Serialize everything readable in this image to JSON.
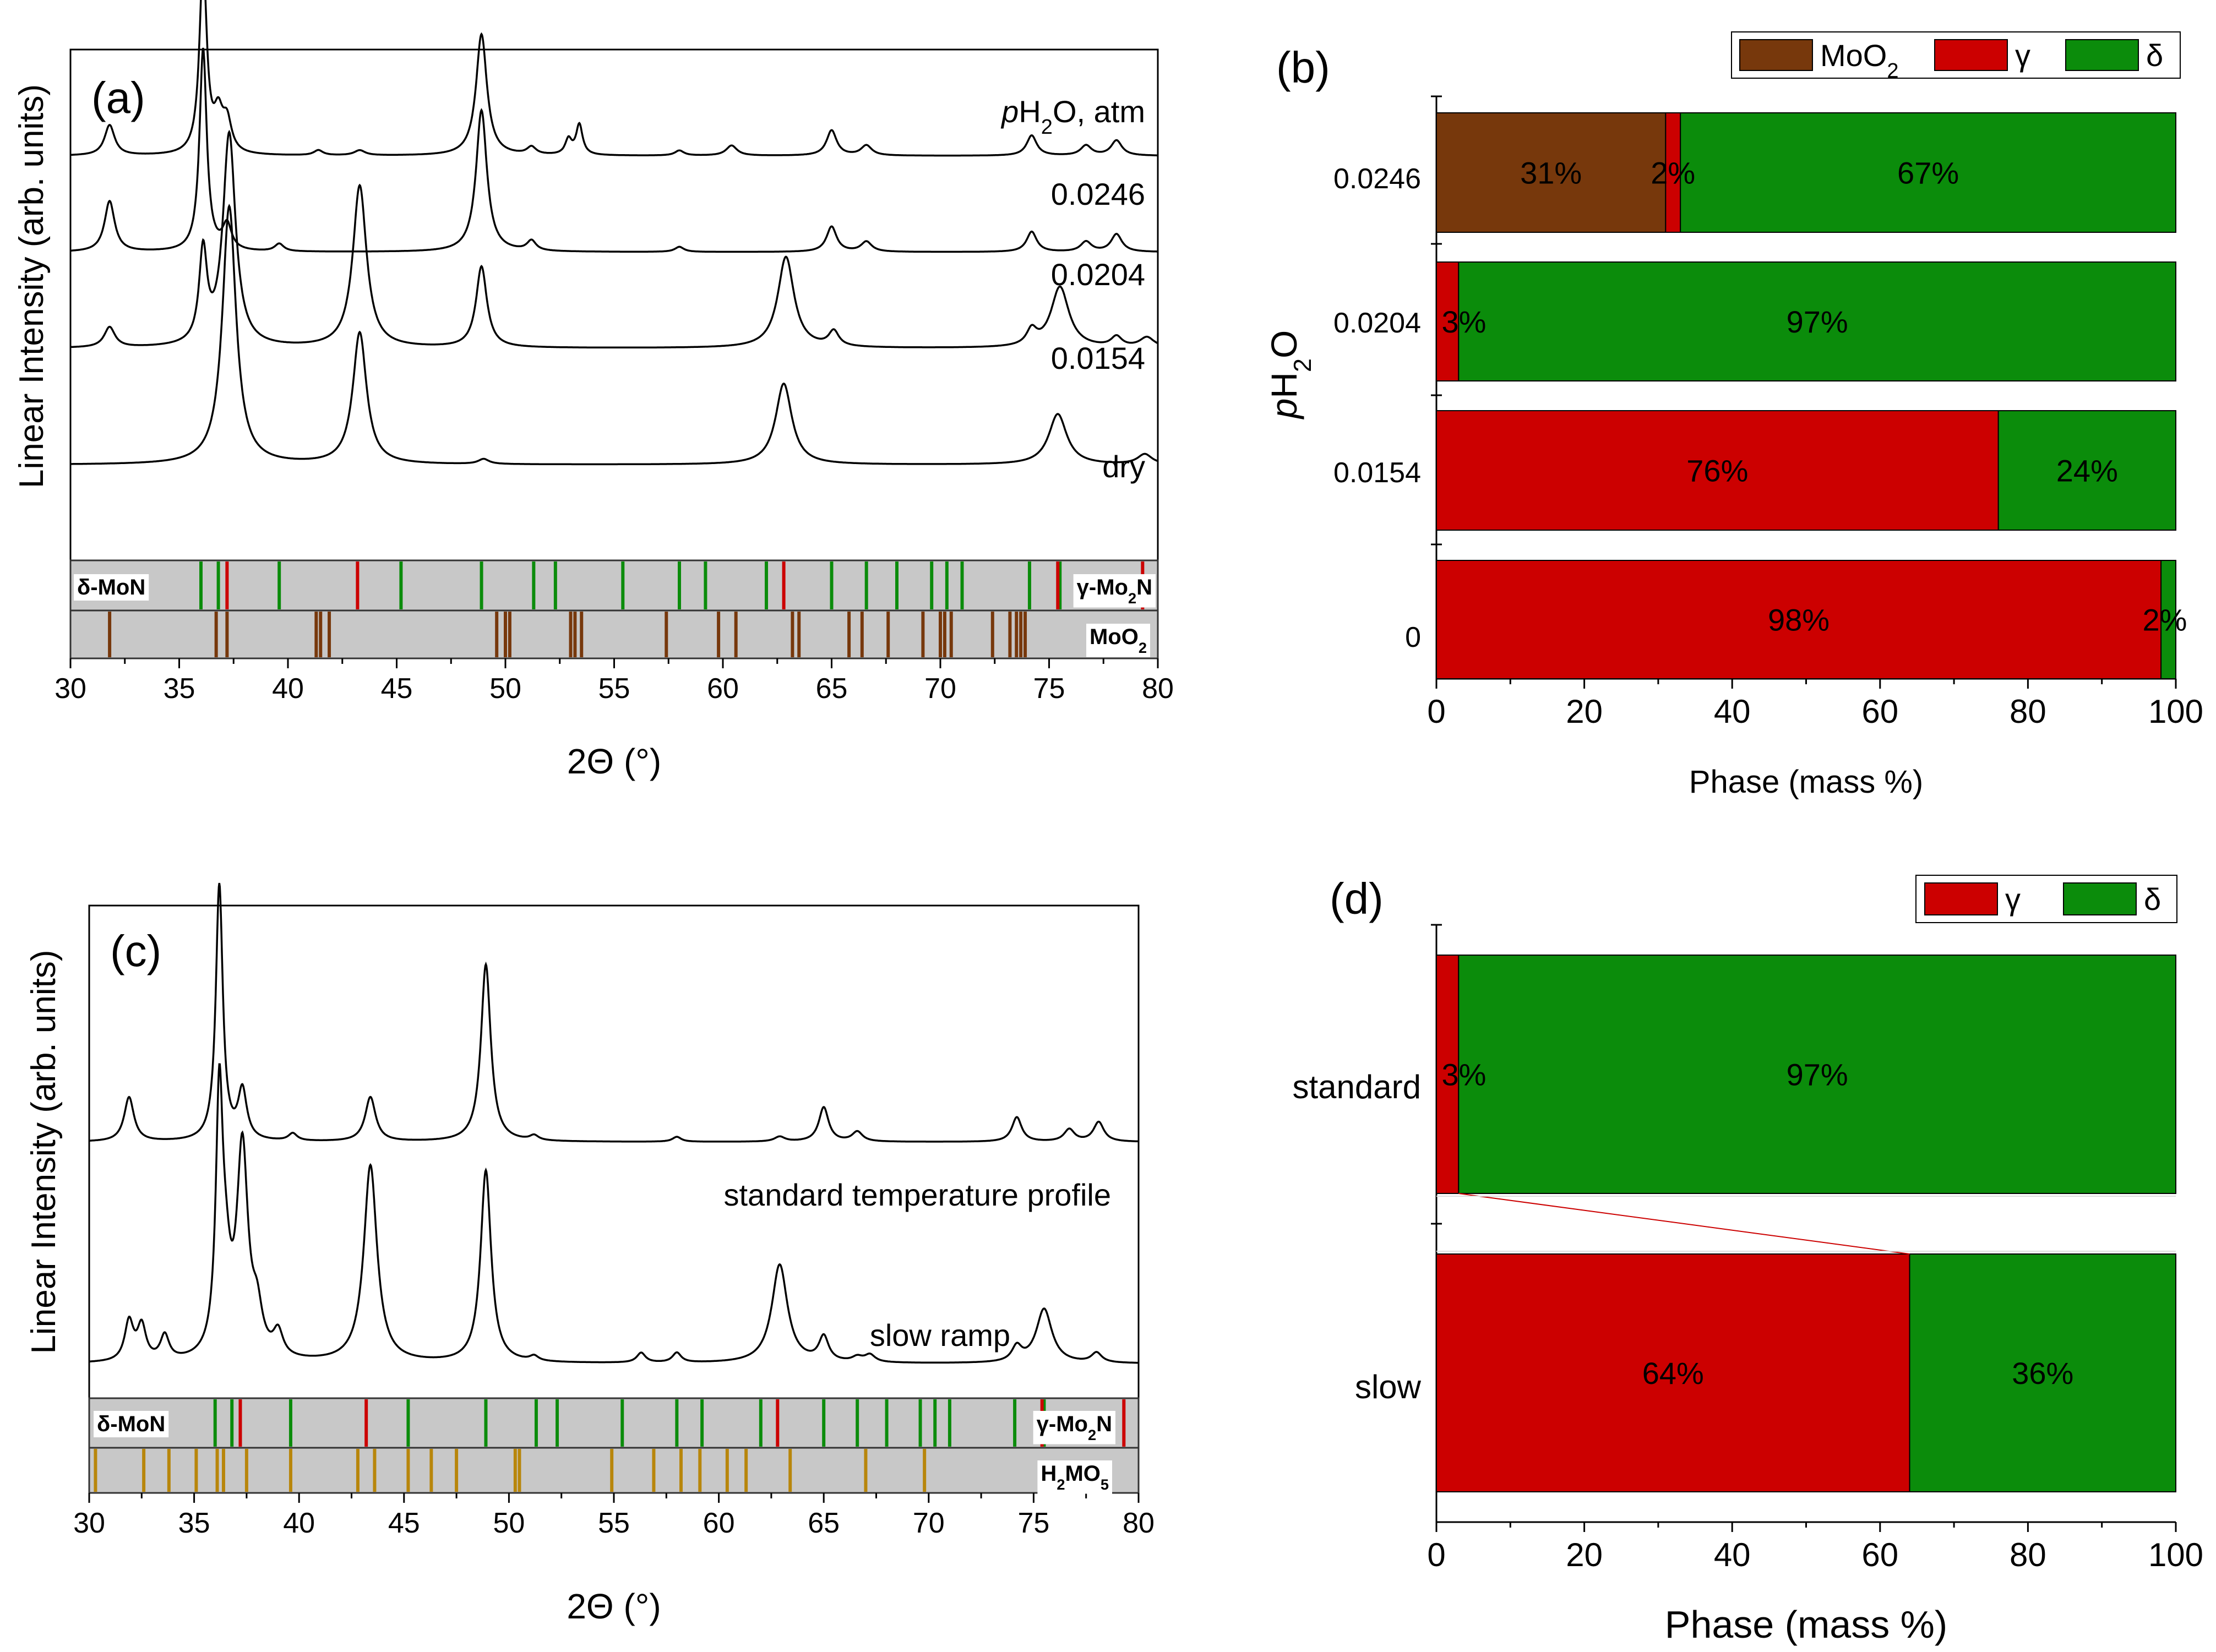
{
  "colors": {
    "moo2": "#77380c",
    "gamma": "#cc0000",
    "delta": "#0b8c0b",
    "h2mo5": "#b8860b",
    "refband": "#c8c8c8",
    "trace": "#000000"
  },
  "chart_data": [
    {
      "panel": "(a)",
      "type": "line",
      "xlabel": "2Θ (°)",
      "ylabel": "Linear Intensity (arb. units)",
      "xlim": [
        30,
        80
      ],
      "xticks": [
        30,
        35,
        40,
        45,
        50,
        55,
        60,
        65,
        70,
        75,
        80
      ],
      "legend_title": "pH2O, atm",
      "series": [
        {
          "name": "0.0246",
          "baseline": 0.79,
          "peaks": [
            [
              31.8,
              0.06,
              0.28
            ],
            [
              36.1,
              0.38,
              0.2
            ],
            [
              36.8,
              0.07,
              0.25
            ],
            [
              37.2,
              0.06,
              0.25
            ],
            [
              41.4,
              0.01,
              0.25
            ],
            [
              43.3,
              0.01,
              0.3
            ],
            [
              48.9,
              0.24,
              0.3
            ],
            [
              51.2,
              0.015,
              0.25
            ],
            [
              52.9,
              0.03,
              0.18
            ],
            [
              53.4,
              0.06,
              0.18
            ],
            [
              58.0,
              0.01,
              0.25
            ],
            [
              60.4,
              0.02,
              0.3
            ],
            [
              65.0,
              0.05,
              0.28
            ],
            [
              66.6,
              0.02,
              0.3
            ],
            [
              74.2,
              0.04,
              0.28
            ],
            [
              76.7,
              0.02,
              0.3
            ],
            [
              78.1,
              0.03,
              0.3
            ]
          ]
        },
        {
          "name": "0.0204",
          "baseline": 0.6,
          "peaks": [
            [
              31.8,
              0.1,
              0.28
            ],
            [
              36.1,
              0.4,
              0.2
            ],
            [
              37.2,
              0.05,
              0.25
            ],
            [
              39.6,
              0.015,
              0.25
            ],
            [
              48.9,
              0.28,
              0.3
            ],
            [
              51.2,
              0.02,
              0.25
            ],
            [
              58.0,
              0.01,
              0.25
            ],
            [
              65.0,
              0.05,
              0.28
            ],
            [
              66.6,
              0.02,
              0.3
            ],
            [
              74.2,
              0.04,
              0.28
            ],
            [
              76.7,
              0.02,
              0.3
            ],
            [
              78.1,
              0.035,
              0.3
            ]
          ]
        },
        {
          "name": "0.0154",
          "baseline": 0.41,
          "peaks": [
            [
              31.8,
              0.04,
              0.3
            ],
            [
              36.1,
              0.18,
              0.22
            ],
            [
              37.3,
              0.42,
              0.35
            ],
            [
              43.3,
              0.32,
              0.38
            ],
            [
              48.9,
              0.16,
              0.3
            ],
            [
              62.9,
              0.18,
              0.45
            ],
            [
              65.1,
              0.03,
              0.28
            ],
            [
              74.2,
              0.03,
              0.28
            ],
            [
              75.5,
              0.12,
              0.5
            ],
            [
              78.1,
              0.02,
              0.3
            ],
            [
              79.5,
              0.02,
              0.4
            ]
          ]
        },
        {
          "name": "dry",
          "baseline": 0.18,
          "peaks": [
            [
              37.3,
              0.51,
              0.38
            ],
            [
              43.3,
              0.26,
              0.38
            ],
            [
              49.0,
              0.01,
              0.3
            ],
            [
              62.8,
              0.16,
              0.45
            ],
            [
              75.4,
              0.1,
              0.5
            ],
            [
              79.4,
              0.02,
              0.4
            ]
          ]
        }
      ],
      "reference_bars": [
        {
          "name": "δ-MoN",
          "color_key": "delta",
          "positions": [
            36.0,
            36.8,
            39.6,
            45.2,
            48.9,
            51.3,
            52.3,
            55.4,
            58.0,
            59.2,
            62.0,
            65.0,
            66.6,
            68.0,
            69.6,
            70.3,
            71.0,
            74.1,
            75.5
          ]
        },
        {
          "name": "γ-Mo2N",
          "color_key": "gamma",
          "positions": [
            37.2,
            43.2,
            62.8,
            75.4,
            79.3
          ]
        },
        {
          "name": "MoO2",
          "color_key": "moo2",
          "positions": [
            31.8,
            36.7,
            37.2,
            41.3,
            41.5,
            41.9,
            49.6,
            50.0,
            50.2,
            53.0,
            53.2,
            53.5,
            57.4,
            59.8,
            60.6,
            63.2,
            63.5,
            65.8,
            66.4,
            67.6,
            69.2,
            70.0,
            70.2,
            70.5,
            72.4,
            73.2,
            73.5,
            73.7,
            73.9
          ]
        }
      ]
    },
    {
      "panel": "(b)",
      "type": "bar",
      "orientation": "horizontal",
      "stacked": true,
      "xlabel": "Phase (mass %)",
      "ylabel": "pH2O",
      "xlim": [
        0,
        100
      ],
      "xticks": [
        0,
        20,
        40,
        60,
        80,
        100
      ],
      "categories": [
        "0.0246",
        "0.0204",
        "0.0154",
        "0"
      ],
      "series": [
        {
          "name": "MoO2",
          "color_key": "moo2",
          "values": [
            31,
            0,
            0,
            0
          ],
          "labels": [
            "31%",
            "",
            "",
            ""
          ]
        },
        {
          "name": "γ",
          "color_key": "gamma",
          "values": [
            2,
            3,
            76,
            98
          ],
          "labels": [
            "2%",
            "3%",
            "76%",
            "98%"
          ]
        },
        {
          "name": "δ",
          "color_key": "delta",
          "values": [
            67,
            97,
            24,
            2
          ],
          "labels": [
            "67%",
            "97%",
            "24%",
            "2%"
          ]
        }
      ],
      "legend_position": "top-right"
    },
    {
      "panel": "(c)",
      "type": "line",
      "xlabel": "2Θ (°)",
      "ylabel": "Linear Intensity (arb. units)",
      "xlim": [
        30,
        80
      ],
      "xticks": [
        30,
        35,
        40,
        45,
        50,
        55,
        60,
        65,
        70,
        75,
        80
      ],
      "series": [
        {
          "name": "standard temperature profile",
          "baseline": 0.52,
          "peaks": [
            [
              31.9,
              0.09,
              0.28
            ],
            [
              36.2,
              0.52,
              0.2
            ],
            [
              37.3,
              0.1,
              0.25
            ],
            [
              39.7,
              0.015,
              0.25
            ],
            [
              43.4,
              0.09,
              0.3
            ],
            [
              48.9,
              0.36,
              0.28
            ],
            [
              51.2,
              0.01,
              0.25
            ],
            [
              58.0,
              0.01,
              0.25
            ],
            [
              62.9,
              0.01,
              0.3
            ],
            [
              65.0,
              0.07,
              0.28
            ],
            [
              66.6,
              0.02,
              0.3
            ],
            [
              74.2,
              0.05,
              0.28
            ],
            [
              76.7,
              0.025,
              0.3
            ],
            [
              78.1,
              0.04,
              0.3
            ]
          ]
        },
        {
          "name": "slow ramp",
          "baseline": 0.07,
          "peaks": [
            [
              31.9,
              0.08,
              0.25
            ],
            [
              32.5,
              0.07,
              0.25
            ],
            [
              33.6,
              0.05,
              0.25
            ],
            [
              36.2,
              0.5,
              0.2
            ],
            [
              36.5,
              0.14,
              0.3
            ],
            [
              37.3,
              0.42,
              0.32
            ],
            [
              38.0,
              0.08,
              0.3
            ],
            [
              39.0,
              0.05,
              0.28
            ],
            [
              43.4,
              0.4,
              0.38
            ],
            [
              48.9,
              0.39,
              0.3
            ],
            [
              51.2,
              0.01,
              0.25
            ],
            [
              56.3,
              0.02,
              0.25
            ],
            [
              58.0,
              0.02,
              0.25
            ],
            [
              62.9,
              0.2,
              0.45
            ],
            [
              65.0,
              0.05,
              0.28
            ],
            [
              66.6,
              0.01,
              0.3
            ],
            [
              67.2,
              0.015,
              0.3
            ],
            [
              74.2,
              0.03,
              0.28
            ],
            [
              75.5,
              0.11,
              0.45
            ],
            [
              78.0,
              0.02,
              0.3
            ]
          ]
        }
      ],
      "reference_bars": [
        {
          "name": "δ-MoN",
          "color_key": "delta",
          "positions": [
            36.0,
            36.8,
            39.6,
            45.2,
            48.9,
            51.3,
            52.3,
            55.4,
            58.0,
            59.2,
            62.0,
            65.0,
            66.6,
            68.0,
            69.6,
            70.3,
            71.0,
            74.1,
            75.5
          ]
        },
        {
          "name": "γ-Mo2N",
          "color_key": "gamma",
          "positions": [
            37.2,
            43.2,
            62.8,
            75.4,
            79.3
          ]
        },
        {
          "name": "H2MO5",
          "color_key": "h2mo5",
          "positions": [
            30.3,
            32.6,
            33.8,
            35.1,
            36.1,
            36.4,
            37.5,
            39.6,
            42.8,
            43.6,
            45.2,
            46.3,
            47.5,
            50.3,
            50.5,
            54.9,
            56.9,
            58.2,
            59.1,
            60.4,
            61.3,
            63.4,
            67.0,
            69.8
          ]
        }
      ]
    },
    {
      "panel": "(d)",
      "type": "bar",
      "orientation": "horizontal",
      "stacked": true,
      "xlabel": "Phase (mass %)",
      "xlim": [
        0,
        100
      ],
      "xticks": [
        0,
        20,
        40,
        60,
        80,
        100
      ],
      "categories": [
        "standard",
        "slow"
      ],
      "series": [
        {
          "name": "γ",
          "color_key": "gamma",
          "values": [
            3,
            64
          ],
          "labels": [
            "3%",
            "64%"
          ]
        },
        {
          "name": "δ",
          "color_key": "delta",
          "values": [
            97,
            36
          ],
          "labels": [
            "97%",
            "36%"
          ]
        }
      ],
      "legend_position": "top-right"
    }
  ]
}
